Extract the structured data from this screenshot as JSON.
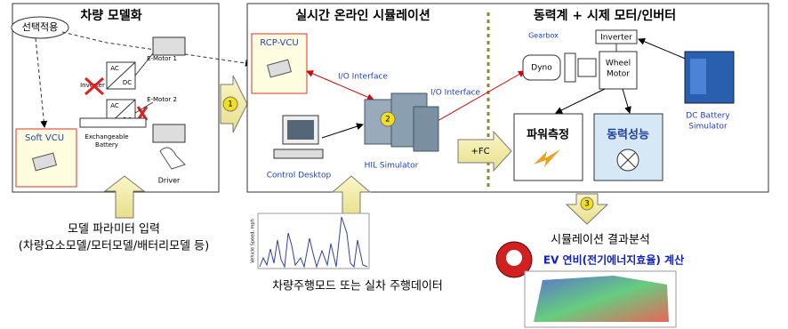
{
  "vehicle_model": {
    "title": "차량 모델화",
    "optional": "선택적용",
    "soft_vcu": "Soft VCU",
    "converters": [
      {
        "ac": "AC",
        "dc": "DC"
      },
      {
        "ac": "AC",
        "dc": "DC"
      }
    ],
    "inverter": "Inverter",
    "motors": [
      "E-Motor 1",
      "E-Motor 2"
    ],
    "battery": [
      "Exchangeable",
      "Battery"
    ],
    "driver": "Driver",
    "step": "1"
  },
  "simulation": {
    "title": "실시간 온라인 시뮬레이션",
    "rcp_vcu": "RCP-VCU",
    "io_interfaces": [
      "I/O Interface",
      "I/O Interface"
    ],
    "desktop": "Control Desktop",
    "hil": "HIL Simulator",
    "step": "2"
  },
  "dynamometer": {
    "title": "동력계 + 시제 모터/인버터",
    "gearbox": "Gearbox",
    "inverter": "Inverter",
    "dyno": "Dyno",
    "wheel_motor": [
      "Wheel",
      "Motor"
    ],
    "battery_sim": [
      "DC Battery",
      "Simulator"
    ],
    "power": "파워측정",
    "performance": "동력성능",
    "fc": "+FC"
  },
  "inputs": {
    "params": [
      "모델 파라미터 입력",
      "(차량요소모델/모터모델/배터리모델 등)"
    ],
    "drive": "차량주행모드 또는 실차 주행데이터",
    "speed_axis": "Vehicle Speed, mph"
  },
  "results": {
    "step": "3",
    "title": "시뮬레이션 결과분석",
    "ev": "EV 연비(전기에너지효율) 계산"
  }
}
